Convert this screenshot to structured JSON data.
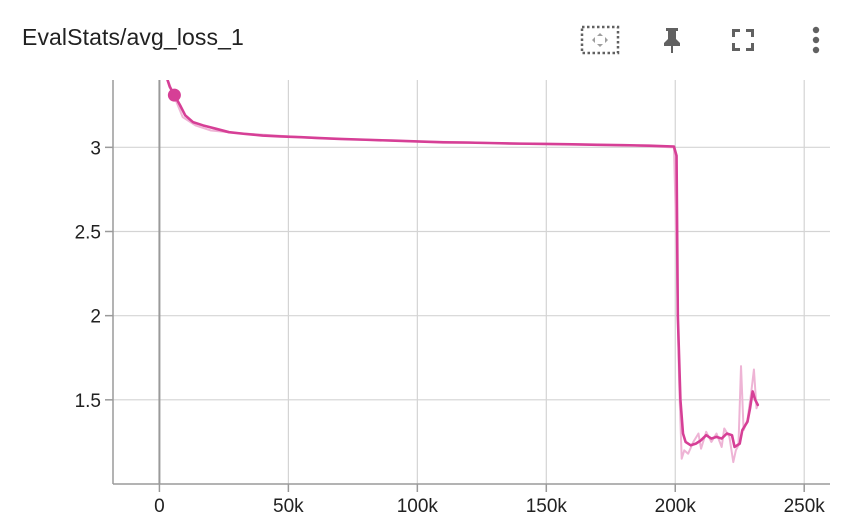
{
  "card": {
    "title": "EvalStats/avg_loss_1"
  },
  "toolbar": {
    "icons": [
      "fit-domain-icon",
      "pin-icon",
      "fullscreen-icon",
      "more-vert-icon"
    ]
  },
  "colors": {
    "series": "#d63f96",
    "series_raw": "#eeb4d5",
    "grid": "#d4d4d4",
    "axis": "#9a9a9a",
    "tick_text": "#212121",
    "icon": "#616161"
  },
  "chart_data": {
    "type": "line",
    "title": "EvalStats/avg_loss_1",
    "xlabel": "",
    "ylabel": "",
    "xlim": [
      -18000,
      260000
    ],
    "ylim": [
      1.0,
      3.4
    ],
    "x_ticks": [
      0,
      50000,
      100000,
      150000,
      200000,
      250000
    ],
    "x_tick_labels": [
      "0",
      "50k",
      "100k",
      "150k",
      "200k",
      "250k"
    ],
    "y_ticks": [
      1.5,
      2,
      2.5,
      3
    ],
    "y_tick_labels": [
      "1.5",
      "2",
      "2.5",
      "3"
    ],
    "grid": true,
    "legend": "none",
    "highlight_point": {
      "x": 5800,
      "y": 3.31
    },
    "series": [
      {
        "smoothed": true,
        "points": [
          [
            2500,
            3.43
          ],
          [
            4000,
            3.36
          ],
          [
            5800,
            3.31
          ],
          [
            8000,
            3.25
          ],
          [
            10000,
            3.19
          ],
          [
            13000,
            3.15
          ],
          [
            17000,
            3.13
          ],
          [
            22000,
            3.11
          ],
          [
            27000,
            3.09
          ],
          [
            33000,
            3.08
          ],
          [
            40000,
            3.07
          ],
          [
            47000,
            3.065
          ],
          [
            55000,
            3.06
          ],
          [
            62000,
            3.055
          ],
          [
            70000,
            3.05
          ],
          [
            80000,
            3.045
          ],
          [
            90000,
            3.04
          ],
          [
            100000,
            3.035
          ],
          [
            110000,
            3.03
          ],
          [
            120000,
            3.028
          ],
          [
            130000,
            3.025
          ],
          [
            140000,
            3.022
          ],
          [
            150000,
            3.02
          ],
          [
            160000,
            3.018
          ],
          [
            170000,
            3.015
          ],
          [
            180000,
            3.013
          ],
          [
            190000,
            3.01
          ],
          [
            199500,
            3.005
          ],
          [
            200500,
            2.95
          ],
          [
            201000,
            2.0
          ],
          [
            202000,
            1.5
          ],
          [
            203000,
            1.3
          ],
          [
            204000,
            1.25
          ],
          [
            206000,
            1.23
          ],
          [
            208000,
            1.24
          ],
          [
            210000,
            1.26
          ],
          [
            212000,
            1.29
          ],
          [
            214000,
            1.27
          ],
          [
            216000,
            1.28
          ],
          [
            218000,
            1.27
          ],
          [
            220000,
            1.3
          ],
          [
            222000,
            1.29
          ],
          [
            223000,
            1.22
          ],
          [
            224000,
            1.23
          ],
          [
            225000,
            1.24
          ],
          [
            226000,
            1.32
          ],
          [
            228000,
            1.37
          ],
          [
            229000,
            1.45
          ],
          [
            230000,
            1.55
          ],
          [
            231000,
            1.5
          ],
          [
            232000,
            1.47
          ]
        ]
      },
      {
        "smoothed": false,
        "points": [
          [
            2500,
            3.43
          ],
          [
            5800,
            3.3
          ],
          [
            9000,
            3.18
          ],
          [
            14000,
            3.13
          ],
          [
            20000,
            3.1
          ],
          [
            30000,
            3.085
          ],
          [
            45000,
            3.07
          ],
          [
            60000,
            3.055
          ],
          [
            80000,
            3.045
          ],
          [
            100000,
            3.035
          ],
          [
            120000,
            3.03
          ],
          [
            140000,
            3.02
          ],
          [
            160000,
            3.018
          ],
          [
            180000,
            3.012
          ],
          [
            199500,
            3.0
          ],
          [
            200500,
            2.4
          ],
          [
            201500,
            1.6
          ],
          [
            202500,
            1.15
          ],
          [
            203500,
            1.2
          ],
          [
            205000,
            1.18
          ],
          [
            207000,
            1.25
          ],
          [
            209000,
            1.3
          ],
          [
            210000,
            1.21
          ],
          [
            212000,
            1.31
          ],
          [
            214000,
            1.25
          ],
          [
            216000,
            1.3
          ],
          [
            218000,
            1.22
          ],
          [
            219000,
            1.33
          ],
          [
            221000,
            1.28
          ],
          [
            222500,
            1.13
          ],
          [
            223500,
            1.2
          ],
          [
            224500,
            1.23
          ],
          [
            225500,
            1.7
          ],
          [
            226500,
            1.32
          ],
          [
            228000,
            1.38
          ],
          [
            229500,
            1.55
          ],
          [
            230500,
            1.68
          ],
          [
            231500,
            1.45
          ],
          [
            232000,
            1.47
          ]
        ]
      }
    ]
  }
}
